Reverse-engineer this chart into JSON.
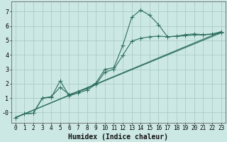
{
  "xlabel": "Humidex (Indice chaleur)",
  "ylabel": "",
  "bg_color": "#cce8e4",
  "grid_color": "#aaccc8",
  "line_color": "#2d6e60",
  "xlim": [
    -0.5,
    23.5
  ],
  "ylim": [
    -0.7,
    7.7
  ],
  "yticks": [
    0,
    1,
    2,
    3,
    4,
    5,
    6,
    7
  ],
  "ytick_labels": [
    "-0",
    "1",
    "2",
    "3",
    "4",
    "5",
    "6",
    "7"
  ],
  "xticks": [
    0,
    1,
    2,
    3,
    4,
    5,
    6,
    7,
    8,
    9,
    10,
    11,
    12,
    13,
    14,
    15,
    16,
    17,
    18,
    19,
    20,
    21,
    22,
    23
  ],
  "line1_x": [
    0,
    1,
    2,
    3,
    4,
    5,
    6,
    7,
    8,
    9,
    10,
    11,
    12,
    13,
    14,
    15,
    16,
    17,
    18,
    19,
    20,
    21,
    22,
    23
  ],
  "line1_y": [
    -0.35,
    -0.1,
    -0.05,
    1.0,
    1.1,
    1.75,
    1.25,
    1.45,
    1.65,
    2.05,
    3.0,
    3.1,
    4.65,
    6.6,
    7.1,
    6.75,
    6.1,
    5.25,
    5.3,
    5.4,
    5.45,
    5.4,
    5.45,
    5.6
  ],
  "line2_x": [
    0,
    1,
    2,
    3,
    4,
    5,
    6,
    7,
    8,
    9,
    10,
    11,
    12,
    13,
    14,
    15,
    16,
    17,
    18,
    19,
    20,
    21,
    22,
    23
  ],
  "line2_y": [
    -0.35,
    -0.1,
    -0.05,
    1.0,
    1.05,
    2.2,
    1.15,
    1.35,
    1.55,
    1.95,
    2.8,
    3.0,
    3.95,
    4.95,
    5.15,
    5.25,
    5.3,
    5.25,
    5.28,
    5.32,
    5.38,
    5.38,
    5.42,
    5.52
  ],
  "line3_x": [
    0,
    23
  ],
  "line3_y": [
    -0.35,
    5.6
  ],
  "line4_x": [
    0,
    23
  ],
  "line4_y": [
    -0.35,
    5.52
  ],
  "marker": "+",
  "marker_size": 4,
  "linewidth": 0.8,
  "xlabel_fontsize": 7,
  "tick_fontsize": 5.5
}
